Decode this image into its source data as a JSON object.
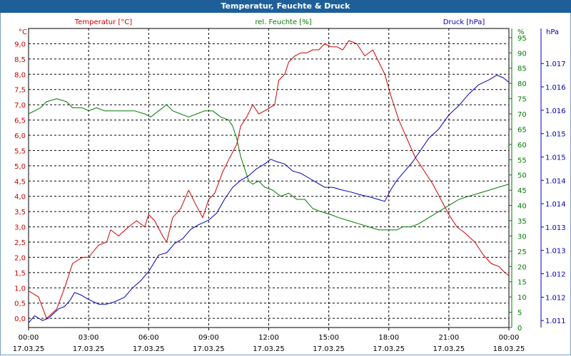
{
  "window_title": "Temperatur, Feuchte & Druck",
  "colors": {
    "temperature": "#cc0000",
    "humidity": "#007a00",
    "pressure": "#0000b0",
    "title_bg": "#1f5f99"
  },
  "chart_data": {
    "type": "line",
    "title": "Temperatur, Feuchte & Druck",
    "x_hours": [
      0,
      24
    ],
    "x_ticks": [
      {
        "h": 0,
        "time": "00:00",
        "date": "17.03.25"
      },
      {
        "h": 3,
        "time": "03:00",
        "date": "17.03.25"
      },
      {
        "h": 6,
        "time": "06:00",
        "date": "17.03.25"
      },
      {
        "h": 9,
        "time": "09:00",
        "date": "17.03.25"
      },
      {
        "h": 12,
        "time": "12:00",
        "date": "17.03.25"
      },
      {
        "h": 15,
        "time": "15:00",
        "date": "17.03.25"
      },
      {
        "h": 18,
        "time": "18:00",
        "date": "17.03.25"
      },
      {
        "h": 21,
        "time": "21:00",
        "date": "17.03.25"
      },
      {
        "h": 24,
        "time": "00:00",
        "date": "18.03.25"
      }
    ],
    "axes": {
      "temperature": {
        "unit": "°C",
        "ylim": [
          -0.3,
          9.5
        ],
        "ticks": [
          "0,0",
          "0,5",
          "1,0",
          "1,5",
          "2,0",
          "2,5",
          "3,0",
          "3,5",
          "4,0",
          "4,5",
          "5,0",
          "5,5",
          "6,0",
          "6,5",
          "7,0",
          "7,5",
          "8,0",
          "8,5",
          "9,0"
        ]
      },
      "humidity": {
        "unit": "%",
        "ylim": [
          0,
          98
        ],
        "ticks": [
          "0",
          "5",
          "10",
          "15",
          "20",
          "25",
          "30",
          "35",
          "40",
          "45",
          "50",
          "55",
          "60",
          "65",
          "70",
          "75",
          "80",
          "85",
          "90",
          "95"
        ]
      },
      "pressure": {
        "unit": "hPa",
        "ylim": [
          1011.35,
          1017.75
        ],
        "ticks": [
          {
            "v": 1011.5,
            "label": "1.011"
          },
          {
            "v": 1012.0,
            "label": "1.012"
          },
          {
            "v": 1012.5,
            "label": "1.012"
          },
          {
            "v": 1013.0,
            "label": "1.013"
          },
          {
            "v": 1013.5,
            "label": "1.013"
          },
          {
            "v": 1014.0,
            "label": "1.014"
          },
          {
            "v": 1014.5,
            "label": "1.014"
          },
          {
            "v": 1015.0,
            "label": "1.015"
          },
          {
            "v": 1015.5,
            "label": "1.015"
          },
          {
            "v": 1016.0,
            "label": "1.016"
          },
          {
            "v": 1016.5,
            "label": "1.016"
          },
          {
            "v": 1017.0,
            "label": "1.017"
          }
        ]
      }
    },
    "series": [
      {
        "key": "temperature",
        "name": "Temperatur [°C]",
        "points": [
          [
            0,
            0.9
          ],
          [
            0.5,
            0.7
          ],
          [
            0.9,
            0.0
          ],
          [
            1.4,
            0.3
          ],
          [
            1.8,
            1.0
          ],
          [
            2.2,
            1.8
          ],
          [
            2.7,
            2.0
          ],
          [
            3.0,
            2.0
          ],
          [
            3.5,
            2.4
          ],
          [
            3.9,
            2.5
          ],
          [
            4.1,
            2.9
          ],
          [
            4.5,
            2.7
          ],
          [
            5.0,
            3.0
          ],
          [
            5.4,
            3.2
          ],
          [
            5.8,
            3.0
          ],
          [
            6.0,
            3.4
          ],
          [
            6.3,
            3.2
          ],
          [
            6.7,
            2.7
          ],
          [
            6.9,
            2.5
          ],
          [
            7.2,
            3.3
          ],
          [
            7.6,
            3.6
          ],
          [
            8.0,
            4.2
          ],
          [
            8.3,
            3.8
          ],
          [
            8.7,
            3.3
          ],
          [
            9.0,
            3.9
          ],
          [
            9.3,
            4.1
          ],
          [
            9.7,
            4.8
          ],
          [
            10.0,
            5.2
          ],
          [
            10.4,
            5.7
          ],
          [
            10.6,
            6.3
          ],
          [
            10.9,
            6.6
          ],
          [
            11.2,
            7.0
          ],
          [
            11.5,
            6.7
          ],
          [
            11.8,
            6.8
          ],
          [
            12.3,
            7.0
          ],
          [
            12.5,
            7.8
          ],
          [
            12.8,
            8.0
          ],
          [
            13.0,
            8.4
          ],
          [
            13.3,
            8.6
          ],
          [
            13.6,
            8.7
          ],
          [
            13.9,
            8.7
          ],
          [
            14.2,
            8.8
          ],
          [
            14.5,
            8.8
          ],
          [
            14.8,
            9.0
          ],
          [
            15.1,
            8.9
          ],
          [
            15.4,
            8.9
          ],
          [
            15.7,
            8.8
          ],
          [
            16.0,
            9.1
          ],
          [
            16.4,
            9.0
          ],
          [
            16.8,
            8.6
          ],
          [
            17.2,
            8.8
          ],
          [
            17.5,
            8.4
          ],
          [
            17.8,
            8.0
          ],
          [
            18.1,
            7.3
          ],
          [
            18.5,
            6.5
          ],
          [
            18.9,
            5.9
          ],
          [
            19.3,
            5.3
          ],
          [
            19.7,
            4.9
          ],
          [
            20.2,
            4.4
          ],
          [
            20.6,
            3.9
          ],
          [
            21.0,
            3.4
          ],
          [
            21.4,
            3.0
          ],
          [
            21.8,
            2.8
          ],
          [
            22.3,
            2.5
          ],
          [
            22.7,
            2.1
          ],
          [
            23.1,
            1.8
          ],
          [
            23.5,
            1.7
          ],
          [
            23.8,
            1.5
          ],
          [
            24.0,
            1.4
          ]
        ]
      },
      {
        "key": "humidity",
        "name": "rel. Feuchte [%]",
        "points": [
          [
            0,
            70
          ],
          [
            0.6,
            72
          ],
          [
            0.9,
            74
          ],
          [
            1.4,
            75
          ],
          [
            1.9,
            74
          ],
          [
            2.2,
            72
          ],
          [
            2.7,
            72
          ],
          [
            3.0,
            71
          ],
          [
            3.4,
            72
          ],
          [
            3.8,
            71
          ],
          [
            4.3,
            71
          ],
          [
            4.8,
            71
          ],
          [
            5.3,
            71
          ],
          [
            5.8,
            70
          ],
          [
            6.1,
            69
          ],
          [
            6.5,
            71
          ],
          [
            6.9,
            73
          ],
          [
            7.2,
            71
          ],
          [
            7.6,
            70
          ],
          [
            8.0,
            69
          ],
          [
            8.4,
            70
          ],
          [
            8.8,
            71
          ],
          [
            9.2,
            71
          ],
          [
            9.6,
            69
          ],
          [
            10.0,
            68
          ],
          [
            10.2,
            66
          ],
          [
            10.4,
            62
          ],
          [
            10.6,
            56
          ],
          [
            10.8,
            52
          ],
          [
            11.0,
            48
          ],
          [
            11.2,
            47
          ],
          [
            11.5,
            48
          ],
          [
            11.8,
            46
          ],
          [
            12.2,
            45
          ],
          [
            12.6,
            43
          ],
          [
            13.0,
            44
          ],
          [
            13.4,
            42
          ],
          [
            13.8,
            42
          ],
          [
            14.2,
            39
          ],
          [
            14.6,
            38
          ],
          [
            15.1,
            37
          ],
          [
            15.5,
            36
          ],
          [
            16.0,
            35
          ],
          [
            16.5,
            34
          ],
          [
            17.0,
            33
          ],
          [
            17.5,
            32
          ],
          [
            18.0,
            32
          ],
          [
            18.4,
            32
          ],
          [
            18.7,
            33
          ],
          [
            19.1,
            33
          ],
          [
            19.5,
            34
          ],
          [
            20.0,
            36
          ],
          [
            20.5,
            38
          ],
          [
            21.0,
            40
          ],
          [
            21.5,
            42
          ],
          [
            22.0,
            43
          ],
          [
            22.5,
            44
          ],
          [
            23.0,
            45
          ],
          [
            23.5,
            46
          ],
          [
            24.0,
            47
          ]
        ]
      },
      {
        "key": "pressure",
        "name": "Druck [hPa]",
        "points": [
          [
            0,
            1011.45
          ],
          [
            0.3,
            1011.6
          ],
          [
            0.7,
            1011.5
          ],
          [
            1.0,
            1011.55
          ],
          [
            1.5,
            1011.75
          ],
          [
            1.8,
            1011.8
          ],
          [
            2.1,
            1011.95
          ],
          [
            2.3,
            1012.1
          ],
          [
            2.6,
            1012.05
          ],
          [
            3.0,
            1011.95
          ],
          [
            3.5,
            1011.85
          ],
          [
            3.9,
            1011.85
          ],
          [
            4.3,
            1011.9
          ],
          [
            4.8,
            1012.0
          ],
          [
            5.2,
            1012.2
          ],
          [
            5.6,
            1012.35
          ],
          [
            6.0,
            1012.55
          ],
          [
            6.5,
            1012.9
          ],
          [
            6.9,
            1012.95
          ],
          [
            7.3,
            1013.15
          ],
          [
            7.7,
            1013.25
          ],
          [
            8.1,
            1013.45
          ],
          [
            8.5,
            1013.55
          ],
          [
            9.0,
            1013.65
          ],
          [
            9.4,
            1013.8
          ],
          [
            9.8,
            1014.1
          ],
          [
            10.2,
            1014.35
          ],
          [
            10.6,
            1014.5
          ],
          [
            11.0,
            1014.6
          ],
          [
            11.4,
            1014.75
          ],
          [
            11.8,
            1014.85
          ],
          [
            12.1,
            1014.95
          ],
          [
            12.4,
            1014.9
          ],
          [
            12.8,
            1014.85
          ],
          [
            13.2,
            1014.7
          ],
          [
            13.6,
            1014.65
          ],
          [
            14.0,
            1014.55
          ],
          [
            14.4,
            1014.45
          ],
          [
            14.8,
            1014.35
          ],
          [
            15.2,
            1014.35
          ],
          [
            15.6,
            1014.3
          ],
          [
            16.1,
            1014.25
          ],
          [
            16.5,
            1014.2
          ],
          [
            17.0,
            1014.15
          ],
          [
            17.4,
            1014.1
          ],
          [
            17.8,
            1014.05
          ],
          [
            18.1,
            1014.3
          ],
          [
            18.4,
            1014.5
          ],
          [
            18.8,
            1014.7
          ],
          [
            19.2,
            1014.9
          ],
          [
            19.6,
            1015.15
          ],
          [
            20.0,
            1015.4
          ],
          [
            20.5,
            1015.6
          ],
          [
            21.0,
            1015.9
          ],
          [
            21.5,
            1016.1
          ],
          [
            22.0,
            1016.35
          ],
          [
            22.5,
            1016.55
          ],
          [
            23.0,
            1016.65
          ],
          [
            23.4,
            1016.75
          ],
          [
            23.7,
            1016.7
          ],
          [
            24.0,
            1016.6
          ]
        ]
      }
    ]
  }
}
